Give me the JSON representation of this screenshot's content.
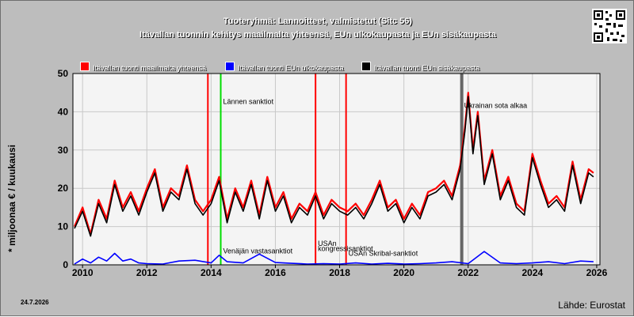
{
  "header": {
    "title": "Tuoteryhmä: Lannoitteet, valmistetut (Sitc 56)",
    "subtitle": "Itävallan tuonnin kehitys maailmalta yhteensä, EUn ulkokaupasta ja EUn sisäkaupasta"
  },
  "footer": {
    "date": "24.7.2026",
    "source": "Lähde: Eurostat"
  },
  "chart_data": {
    "type": "line",
    "ylabel": "* miljoonaa € / kuukausi",
    "xlabel": "",
    "ylim": [
      0,
      50
    ],
    "xlim": [
      2009.7,
      2026.1
    ],
    "yticks": [
      0,
      10,
      20,
      30,
      40,
      50
    ],
    "xticks": [
      2010,
      2012,
      2014,
      2016,
      2018,
      2020,
      2022,
      2024,
      2026
    ],
    "grid": true,
    "legend_position": "top",
    "colors": {
      "plot_bg": "#f4f4f4",
      "frame": "#000000"
    },
    "series": [
      {
        "name": "Itävallan tuonti maailmalta yhteensä",
        "color": "#ff0000",
        "x": [
          2009.75,
          2010.0,
          2010.25,
          2010.5,
          2010.75,
          2011.0,
          2011.25,
          2011.5,
          2011.75,
          2012.0,
          2012.25,
          2012.5,
          2012.75,
          2013.0,
          2013.25,
          2013.5,
          2013.75,
          2014.0,
          2014.25,
          2014.5,
          2014.75,
          2015.0,
          2015.25,
          2015.5,
          2015.75,
          2016.0,
          2016.25,
          2016.5,
          2016.75,
          2017.0,
          2017.25,
          2017.5,
          2017.75,
          2018.0,
          2018.25,
          2018.5,
          2018.75,
          2019.0,
          2019.25,
          2019.5,
          2019.75,
          2020.0,
          2020.25,
          2020.5,
          2020.75,
          2021.0,
          2021.25,
          2021.5,
          2021.75,
          2021.9,
          2022.0,
          2022.15,
          2022.3,
          2022.5,
          2022.75,
          2023.0,
          2023.25,
          2023.5,
          2023.75,
          2024.0,
          2024.25,
          2024.5,
          2024.75,
          2025.0,
          2025.25,
          2025.5,
          2025.75,
          2025.9
        ],
        "values": [
          10,
          15,
          8,
          17,
          12,
          22,
          15,
          19,
          14,
          20,
          25,
          15,
          20,
          18,
          26,
          17,
          14,
          17,
          23,
          12,
          20,
          15,
          22,
          13,
          23,
          15,
          19,
          12,
          16,
          14,
          19,
          13,
          17,
          15,
          14,
          16,
          13,
          17,
          22,
          15,
          17,
          12,
          16,
          13,
          19,
          20,
          22,
          18,
          26,
          36,
          45,
          30,
          40,
          22,
          30,
          18,
          23,
          16,
          14,
          29,
          22,
          16,
          18,
          15,
          27,
          17,
          25,
          24
        ]
      },
      {
        "name": "Itävallan tuonti EUn ulkokaupasta",
        "color": "#0000ff",
        "x": [
          2009.75,
          2010.0,
          2010.25,
          2010.5,
          2010.75,
          2011.0,
          2011.25,
          2011.5,
          2011.75,
          2012.0,
          2012.5,
          2013.0,
          2013.5,
          2014.0,
          2014.25,
          2014.5,
          2015.0,
          2015.5,
          2016.0,
          2016.5,
          2017.0,
          2017.5,
          2018.0,
          2018.5,
          2019.0,
          2019.5,
          2020.0,
          2020.5,
          2021.0,
          2021.5,
          2022.0,
          2022.5,
          2023.0,
          2023.5,
          2024.0,
          2024.5,
          2025.0,
          2025.5,
          2025.9
        ],
        "values": [
          0.2,
          1.5,
          0.5,
          2.0,
          1.0,
          3.0,
          1.0,
          1.5,
          0.5,
          0.3,
          0.2,
          1.0,
          1.2,
          0.5,
          2.5,
          0.8,
          0.5,
          2.8,
          0.6,
          0.4,
          0.2,
          0.3,
          0.2,
          0.5,
          0.2,
          0.4,
          0.2,
          0.3,
          0.5,
          0.8,
          0.3,
          3.5,
          0.5,
          0.3,
          0.5,
          0.8,
          0.3,
          1.0,
          0.8
        ]
      },
      {
        "name": "Itävallan tuonti EUn sisäkaupasta",
        "color": "#000000",
        "x": [
          2009.75,
          2010.0,
          2010.25,
          2010.5,
          2010.75,
          2011.0,
          2011.25,
          2011.5,
          2011.75,
          2012.0,
          2012.25,
          2012.5,
          2012.75,
          2013.0,
          2013.25,
          2013.5,
          2013.75,
          2014.0,
          2014.25,
          2014.5,
          2014.75,
          2015.0,
          2015.25,
          2015.5,
          2015.75,
          2016.0,
          2016.25,
          2016.5,
          2016.75,
          2017.0,
          2017.25,
          2017.5,
          2017.75,
          2018.0,
          2018.25,
          2018.5,
          2018.75,
          2019.0,
          2019.25,
          2019.5,
          2019.75,
          2020.0,
          2020.25,
          2020.5,
          2020.75,
          2021.0,
          2021.25,
          2021.5,
          2021.75,
          2021.9,
          2022.0,
          2022.15,
          2022.3,
          2022.5,
          2022.75,
          2023.0,
          2023.25,
          2023.5,
          2023.75,
          2024.0,
          2024.25,
          2024.5,
          2024.75,
          2025.0,
          2025.25,
          2025.5,
          2025.75,
          2025.9
        ],
        "values": [
          9.5,
          14,
          7.5,
          16,
          11,
          21,
          14,
          18,
          13,
          19,
          24,
          14,
          19,
          17,
          25,
          16,
          13,
          16,
          22,
          11,
          19,
          14,
          21,
          12,
          22,
          14,
          18,
          11,
          15,
          13,
          18,
          12,
          16,
          14,
          13,
          15,
          12,
          16,
          21,
          14,
          16,
          11,
          15,
          12,
          18,
          19,
          21,
          17,
          25,
          35,
          44,
          29,
          39,
          21,
          29,
          17,
          22,
          15,
          13,
          28,
          21,
          15,
          17,
          14,
          26,
          16,
          24,
          23
        ]
      }
    ],
    "annotations": [
      {
        "x": 2013.9,
        "color": "#ff0000",
        "label": "",
        "label_y": null
      },
      {
        "x": 2014.3,
        "color": "#00dd00",
        "label": "Lännen sanktiot",
        "label_y": 42
      },
      {
        "x": 2014.3,
        "color": null,
        "label": "Venäjän vastasanktiot",
        "label_y": 3.0
      },
      {
        "x": 2017.25,
        "color": "#ff0000",
        "label": "USAn",
        "label_y": 5.0
      },
      {
        "x": 2017.25,
        "color": null,
        "label": "kongressisanktiot",
        "label_y": 3.6
      },
      {
        "x": 2018.2,
        "color": "#ff0000",
        "label": "USAn Skribal-sanktiot",
        "label_y": 2.4
      },
      {
        "x": 2021.8,
        "color": "#666666",
        "label": "Ukrainan sota alkaa",
        "label_y": 41
      }
    ]
  }
}
